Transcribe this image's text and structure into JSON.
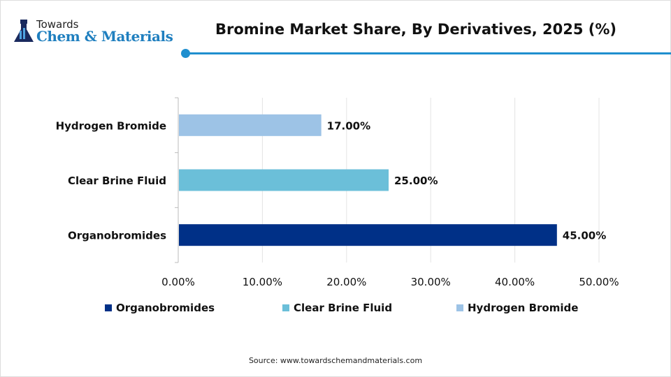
{
  "logo": {
    "line1": "Towards",
    "line2": "Chem & Materials"
  },
  "chart_data": {
    "type": "bar",
    "orientation": "horizontal",
    "title": "Bromine Market Share, By Derivatives, 2025 (%)",
    "categories": [
      "Hydrogen Bromide",
      "Clear Brine Fluid",
      "Organobromides"
    ],
    "values": [
      17,
      25,
      45
    ],
    "data_labels": [
      "17.00%",
      "25.00%",
      "45.00%"
    ],
    "colors": [
      "#9dc3e6",
      "#6bbfd9",
      "#003087"
    ],
    "xlim": [
      0,
      50
    ],
    "xticks": [
      "0.00%",
      "10.00%",
      "20.00%",
      "30.00%",
      "40.00%",
      "50.00%"
    ],
    "grid": true,
    "legend": {
      "placement": "bottom",
      "entries": [
        "Organobromides",
        "Clear Brine Fluid",
        "Hydrogen Bromide"
      ],
      "colors": [
        "#003087",
        "#6bbfd9",
        "#9dc3e6"
      ]
    }
  },
  "source": "Source: www.towardschemandmaterials.com"
}
